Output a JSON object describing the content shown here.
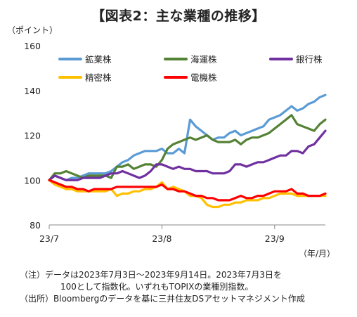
{
  "title": "【図表2：主な業種の推移】",
  "y_unit": "（ポイント）",
  "x_unit": "（年/月）",
  "notes": {
    "line1": "（注）データは2023年7月3日～2023年9月14日。2023年7月3日を",
    "line2": "100として指数化。いずれもTOPIXの業種別指数。",
    "line3": "（出所）Bloombergのデータを基に三井住友DSアセットマネジメント作成"
  },
  "chart_data": {
    "type": "line",
    "x_ticks": [
      {
        "label": "23/7",
        "x": 0
      },
      {
        "label": "23/8",
        "x": 20
      },
      {
        "label": "23/9",
        "x": 40
      }
    ],
    "x_range": [
      0,
      49
    ],
    "ylim": [
      80,
      160
    ],
    "y_ticks": [
      80,
      100,
      120,
      140,
      160
    ],
    "grid": false,
    "legend_position": "top-left",
    "series": [
      {
        "name": "鉱業株",
        "color": "#5B9BD5",
        "points": [
          [
            0,
            100
          ],
          [
            1,
            102
          ],
          [
            2,
            101
          ],
          [
            3,
            100
          ],
          [
            4,
            101
          ],
          [
            5,
            101
          ],
          [
            6,
            102
          ],
          [
            7,
            103
          ],
          [
            8,
            103
          ],
          [
            9,
            103
          ],
          [
            10,
            103
          ],
          [
            11,
            104
          ],
          [
            12,
            106
          ],
          [
            13,
            108
          ],
          [
            14,
            109
          ],
          [
            15,
            111
          ],
          [
            16,
            112
          ],
          [
            17,
            113
          ],
          [
            18,
            113
          ],
          [
            19,
            113
          ],
          [
            20,
            114
          ],
          [
            21,
            112
          ],
          [
            22,
            112
          ],
          [
            23,
            114
          ],
          [
            24,
            112
          ],
          [
            25,
            127
          ],
          [
            26,
            124
          ],
          [
            27,
            122
          ],
          [
            28,
            120
          ],
          [
            29,
            118
          ],
          [
            30,
            119
          ],
          [
            31,
            119
          ],
          [
            32,
            121
          ],
          [
            33,
            122
          ],
          [
            34,
            120
          ],
          [
            35,
            121
          ],
          [
            36,
            122
          ],
          [
            37,
            123
          ],
          [
            38,
            124
          ],
          [
            39,
            127
          ],
          [
            40,
            128
          ],
          [
            41,
            129
          ],
          [
            42,
            131
          ],
          [
            43,
            133
          ],
          [
            44,
            131
          ],
          [
            45,
            132
          ],
          [
            46,
            134
          ],
          [
            47,
            135
          ],
          [
            48,
            137
          ],
          [
            49,
            138
          ]
        ]
      },
      {
        "name": "海運株",
        "color": "#548235",
        "points": [
          [
            0,
            100
          ],
          [
            1,
            103
          ],
          [
            2,
            103
          ],
          [
            3,
            104
          ],
          [
            4,
            103
          ],
          [
            5,
            102
          ],
          [
            6,
            101
          ],
          [
            7,
            102
          ],
          [
            8,
            102
          ],
          [
            9,
            102
          ],
          [
            10,
            102
          ],
          [
            11,
            101
          ],
          [
            12,
            106
          ],
          [
            13,
            106
          ],
          [
            14,
            107
          ],
          [
            15,
            105
          ],
          [
            16,
            106
          ],
          [
            17,
            107
          ],
          [
            18,
            107
          ],
          [
            19,
            106
          ],
          [
            20,
            109
          ],
          [
            21,
            114
          ],
          [
            22,
            116
          ],
          [
            23,
            117
          ],
          [
            24,
            118
          ],
          [
            25,
            119
          ],
          [
            26,
            118
          ],
          [
            27,
            119
          ],
          [
            28,
            120
          ],
          [
            29,
            118
          ],
          [
            30,
            117
          ],
          [
            31,
            117
          ],
          [
            32,
            117
          ],
          [
            33,
            118
          ],
          [
            34,
            116
          ],
          [
            35,
            118
          ],
          [
            36,
            119
          ],
          [
            37,
            119
          ],
          [
            38,
            120
          ],
          [
            39,
            121
          ],
          [
            40,
            123
          ],
          [
            41,
            125
          ],
          [
            42,
            127
          ],
          [
            43,
            129
          ],
          [
            44,
            125
          ],
          [
            45,
            124
          ],
          [
            46,
            123
          ],
          [
            47,
            122
          ],
          [
            48,
            125
          ],
          [
            49,
            127
          ]
        ]
      },
      {
        "name": "銀行株",
        "color": "#7030A0",
        "points": [
          [
            0,
            100
          ],
          [
            1,
            102
          ],
          [
            2,
            101
          ],
          [
            3,
            100
          ],
          [
            4,
            100
          ],
          [
            5,
            100
          ],
          [
            6,
            101
          ],
          [
            7,
            101
          ],
          [
            8,
            101
          ],
          [
            9,
            101
          ],
          [
            10,
            102
          ],
          [
            11,
            103
          ],
          [
            12,
            103
          ],
          [
            13,
            104
          ],
          [
            14,
            103
          ],
          [
            15,
            102
          ],
          [
            16,
            101
          ],
          [
            17,
            102
          ],
          [
            18,
            104
          ],
          [
            19,
            107
          ],
          [
            20,
            107
          ],
          [
            21,
            106
          ],
          [
            22,
            105
          ],
          [
            23,
            106
          ],
          [
            24,
            105
          ],
          [
            25,
            105
          ],
          [
            26,
            104
          ],
          [
            27,
            104
          ],
          [
            28,
            104
          ],
          [
            29,
            103
          ],
          [
            30,
            103
          ],
          [
            31,
            103
          ],
          [
            32,
            104
          ],
          [
            33,
            107
          ],
          [
            34,
            107
          ],
          [
            35,
            106
          ],
          [
            36,
            107
          ],
          [
            37,
            108
          ],
          [
            38,
            108
          ],
          [
            39,
            109
          ],
          [
            40,
            110
          ],
          [
            41,
            111
          ],
          [
            42,
            111
          ],
          [
            43,
            113
          ],
          [
            44,
            113
          ],
          [
            45,
            112
          ],
          [
            46,
            115
          ],
          [
            47,
            116
          ],
          [
            48,
            119
          ],
          [
            49,
            122
          ]
        ]
      },
      {
        "name": "精密株",
        "color": "#FFC000",
        "points": [
          [
            0,
            100
          ],
          [
            1,
            98
          ],
          [
            2,
            97
          ],
          [
            3,
            96
          ],
          [
            4,
            96
          ],
          [
            5,
            95
          ],
          [
            6,
            95
          ],
          [
            7,
            95
          ],
          [
            8,
            95
          ],
          [
            9,
            95
          ],
          [
            10,
            95
          ],
          [
            11,
            96
          ],
          [
            12,
            93
          ],
          [
            13,
            94
          ],
          [
            14,
            94
          ],
          [
            15,
            95
          ],
          [
            16,
            95
          ],
          [
            17,
            96
          ],
          [
            18,
            96
          ],
          [
            19,
            97
          ],
          [
            20,
            99
          ],
          [
            21,
            96
          ],
          [
            22,
            97
          ],
          [
            23,
            96
          ],
          [
            24,
            95
          ],
          [
            25,
            93
          ],
          [
            26,
            93
          ],
          [
            27,
            92
          ],
          [
            28,
            89
          ],
          [
            29,
            88
          ],
          [
            30,
            88
          ],
          [
            31,
            89
          ],
          [
            32,
            89
          ],
          [
            33,
            90
          ],
          [
            34,
            90
          ],
          [
            35,
            91
          ],
          [
            36,
            91
          ],
          [
            37,
            91
          ],
          [
            38,
            92
          ],
          [
            39,
            92
          ],
          [
            40,
            93
          ],
          [
            41,
            94
          ],
          [
            42,
            94
          ],
          [
            43,
            94
          ],
          [
            44,
            93
          ],
          [
            45,
            93
          ],
          [
            46,
            93
          ],
          [
            47,
            93
          ],
          [
            48,
            93
          ],
          [
            49,
            93
          ]
        ]
      },
      {
        "name": "電機株",
        "color": "#FF0000",
        "points": [
          [
            0,
            100
          ],
          [
            1,
            99
          ],
          [
            2,
            98
          ],
          [
            3,
            97
          ],
          [
            4,
            97
          ],
          [
            5,
            96
          ],
          [
            6,
            96
          ],
          [
            7,
            95
          ],
          [
            8,
            96
          ],
          [
            9,
            96
          ],
          [
            10,
            96
          ],
          [
            11,
            96
          ],
          [
            12,
            97
          ],
          [
            13,
            97
          ],
          [
            14,
            97
          ],
          [
            15,
            97
          ],
          [
            16,
            97
          ],
          [
            17,
            97
          ],
          [
            18,
            97
          ],
          [
            19,
            97
          ],
          [
            20,
            98
          ],
          [
            21,
            96
          ],
          [
            22,
            96
          ],
          [
            23,
            95
          ],
          [
            24,
            95
          ],
          [
            25,
            94
          ],
          [
            26,
            93
          ],
          [
            27,
            93
          ],
          [
            28,
            92
          ],
          [
            29,
            92
          ],
          [
            30,
            91
          ],
          [
            31,
            91
          ],
          [
            32,
            91
          ],
          [
            33,
            92
          ],
          [
            34,
            93
          ],
          [
            35,
            92
          ],
          [
            36,
            92
          ],
          [
            37,
            93
          ],
          [
            38,
            93
          ],
          [
            39,
            94
          ],
          [
            40,
            95
          ],
          [
            41,
            95
          ],
          [
            42,
            95
          ],
          [
            43,
            96
          ],
          [
            44,
            94
          ],
          [
            45,
            94
          ],
          [
            46,
            93
          ],
          [
            47,
            93
          ],
          [
            48,
            93
          ],
          [
            49,
            94
          ]
        ]
      }
    ]
  }
}
